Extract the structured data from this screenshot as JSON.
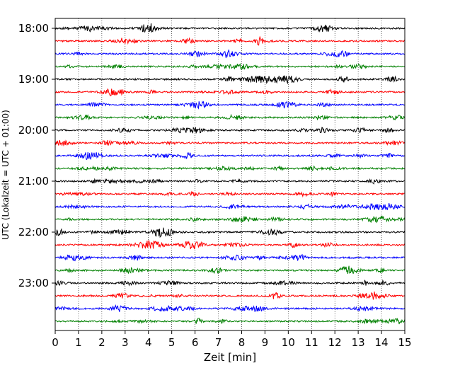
{
  "chart_data": {
    "type": "line",
    "title": "",
    "xlabel": "Zeit  [min]",
    "ylabel": "UTC (Lokalzeit = UTC + 01:00)",
    "xlim": [
      0,
      15
    ],
    "xticks": [
      0,
      1,
      2,
      3,
      4,
      5,
      6,
      7,
      8,
      9,
      10,
      11,
      12,
      13,
      14,
      15
    ],
    "x_gridlines": "dotted at every minute",
    "y_tick_labels": [
      "18:00",
      "19:00",
      "20:00",
      "21:00",
      "22:00",
      "23:00"
    ],
    "trace_interval_minutes": 15,
    "trace_colors_cycle": [
      "#000000",
      "#ff0000",
      "#0000ff",
      "#008000"
    ],
    "traces": [
      {
        "start": "18:00",
        "color": "#000000"
      },
      {
        "start": "18:15",
        "color": "#ff0000"
      },
      {
        "start": "18:30",
        "color": "#0000ff"
      },
      {
        "start": "18:45",
        "color": "#008000"
      },
      {
        "start": "19:00",
        "color": "#000000"
      },
      {
        "start": "19:15",
        "color": "#ff0000"
      },
      {
        "start": "19:30",
        "color": "#0000ff"
      },
      {
        "start": "19:45",
        "color": "#008000"
      },
      {
        "start": "20:00",
        "color": "#000000"
      },
      {
        "start": "20:15",
        "color": "#ff0000"
      },
      {
        "start": "20:30",
        "color": "#0000ff"
      },
      {
        "start": "20:45",
        "color": "#008000"
      },
      {
        "start": "21:00",
        "color": "#000000"
      },
      {
        "start": "21:15",
        "color": "#ff0000"
      },
      {
        "start": "21:30",
        "color": "#0000ff"
      },
      {
        "start": "21:45",
        "color": "#008000"
      },
      {
        "start": "22:00",
        "color": "#000000"
      },
      {
        "start": "22:15",
        "color": "#ff0000"
      },
      {
        "start": "22:30",
        "color": "#0000ff"
      },
      {
        "start": "22:45",
        "color": "#008000"
      },
      {
        "start": "23:00",
        "color": "#000000"
      },
      {
        "start": "23:15",
        "color": "#ff0000"
      },
      {
        "start": "23:30",
        "color": "#0000ff"
      },
      {
        "start": "23:45",
        "color": "#008000"
      }
    ]
  }
}
